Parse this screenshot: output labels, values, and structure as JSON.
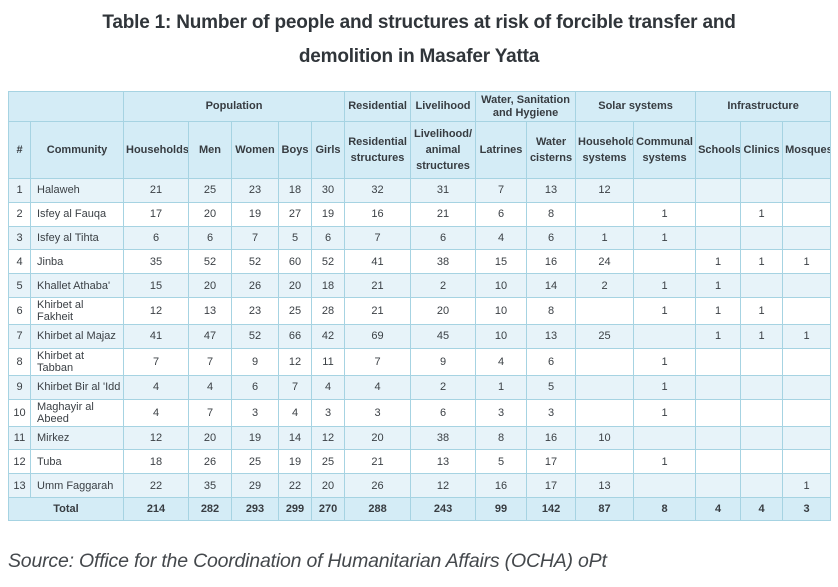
{
  "title": {
    "lines": [
      "Table 1: Number of people and structures at risk of forcible transfer and",
      "demolition in Masafer Yatta"
    ]
  },
  "source": "Source: Office for the Coordination of Humanitarian Affairs (OCHA) oPt",
  "colors": {
    "header_bg": "#d4ecf6",
    "row_alt_bg": "#e7f3f9",
    "outer_border": "#63abc4",
    "inner_border": "#a6d3e2",
    "title_color": "#30353a",
    "text_color": "#3b4045"
  },
  "table": {
    "group_headers": [
      {
        "label": "",
        "colspan": 2
      },
      {
        "label": "Population",
        "colspan": 5
      },
      {
        "label": "Residential",
        "colspan": 1
      },
      {
        "label": "Livelihood",
        "colspan": 1
      },
      {
        "label": "Water, Sanitation and Hygiene",
        "colspan": 2
      },
      {
        "label": "Solar systems",
        "colspan": 2
      },
      {
        "label": "Infrastructure",
        "colspan": 3
      }
    ],
    "columns": [
      "#",
      "Community",
      "Households",
      "Men",
      "Women",
      "Boys",
      "Girls",
      "Residential structures",
      "Livelihood/ animal structures",
      "Latrines",
      "Water cisterns",
      "Household systems",
      "Communal systems",
      "Schools",
      "Clinics",
      "Mosques"
    ],
    "rows": [
      {
        "num": "1",
        "community": "Halaweh",
        "values": [
          "21",
          "25",
          "23",
          "18",
          "30",
          "32",
          "31",
          "7",
          "13",
          "12",
          "",
          "",
          "",
          ""
        ]
      },
      {
        "num": "2",
        "community": "Isfey al Fauqa",
        "values": [
          "17",
          "20",
          "19",
          "27",
          "19",
          "16",
          "21",
          "6",
          "8",
          "",
          "1",
          "",
          "1",
          ""
        ]
      },
      {
        "num": "3",
        "community": "Isfey al Tihta",
        "values": [
          "6",
          "6",
          "7",
          "5",
          "6",
          "7",
          "6",
          "4",
          "6",
          "1",
          "1",
          "",
          "",
          ""
        ]
      },
      {
        "num": "4",
        "community": "Jinba",
        "values": [
          "35",
          "52",
          "52",
          "60",
          "52",
          "41",
          "38",
          "15",
          "16",
          "24",
          "",
          "1",
          "1",
          "1"
        ]
      },
      {
        "num": "5",
        "community": "Khallet Athaba'",
        "values": [
          "15",
          "20",
          "26",
          "20",
          "18",
          "21",
          "2",
          "10",
          "14",
          "2",
          "1",
          "1",
          "",
          ""
        ]
      },
      {
        "num": "6",
        "community": "Khirbet al Fakheit",
        "values": [
          "12",
          "13",
          "23",
          "25",
          "28",
          "21",
          "20",
          "10",
          "8",
          "",
          "1",
          "1",
          "1",
          ""
        ]
      },
      {
        "num": "7",
        "community": "Khirbet al Majaz",
        "values": [
          "41",
          "47",
          "52",
          "66",
          "42",
          "69",
          "45",
          "10",
          "13",
          "25",
          "",
          "1",
          "1",
          "1"
        ]
      },
      {
        "num": "8",
        "community": "Khirbet at Tabban",
        "values": [
          "7",
          "7",
          "9",
          "12",
          "11",
          "7",
          "9",
          "4",
          "6",
          "",
          "1",
          "",
          "",
          ""
        ]
      },
      {
        "num": "9",
        "community": "Khirbet Bir al 'Idd",
        "values": [
          "4",
          "4",
          "6",
          "7",
          "4",
          "4",
          "2",
          "1",
          "5",
          "",
          "1",
          "",
          "",
          ""
        ]
      },
      {
        "num": "10",
        "community": "Maghayir al Abeed",
        "values": [
          "4",
          "7",
          "3",
          "4",
          "3",
          "3",
          "6",
          "3",
          "3",
          "",
          "1",
          "",
          "",
          ""
        ]
      },
      {
        "num": "11",
        "community": "Mirkez",
        "values": [
          "12",
          "20",
          "19",
          "14",
          "12",
          "20",
          "38",
          "8",
          "16",
          "10",
          "",
          "",
          "",
          ""
        ]
      },
      {
        "num": "12",
        "community": "Tuba",
        "values": [
          "18",
          "26",
          "25",
          "19",
          "25",
          "21",
          "13",
          "5",
          "17",
          "",
          "1",
          "",
          "",
          ""
        ]
      },
      {
        "num": "13",
        "community": "Umm Faggarah",
        "values": [
          "22",
          "35",
          "29",
          "22",
          "20",
          "26",
          "12",
          "16",
          "17",
          "13",
          "",
          "",
          "",
          "1"
        ]
      }
    ],
    "total": {
      "label": "Total",
      "values": [
        "214",
        "282",
        "293",
        "299",
        "270",
        "288",
        "243",
        "99",
        "142",
        "87",
        "8",
        "4",
        "4",
        "3"
      ]
    }
  },
  "chart_data": {
    "type": "table",
    "title": "Table 1: Number of people and structures at risk of forcible transfer and demolition in Masafer Yatta",
    "columns": [
      "#",
      "Community",
      "Households",
      "Men",
      "Women",
      "Boys",
      "Girls",
      "Residential structures",
      "Livelihood/animal structures",
      "Latrines",
      "Water cisterns",
      "Household systems",
      "Communal systems",
      "Schools",
      "Clinics",
      "Mosques"
    ],
    "totals": [
      214,
      282,
      293,
      299,
      270,
      288,
      243,
      99,
      142,
      87,
      8,
      4,
      4,
      3
    ]
  }
}
